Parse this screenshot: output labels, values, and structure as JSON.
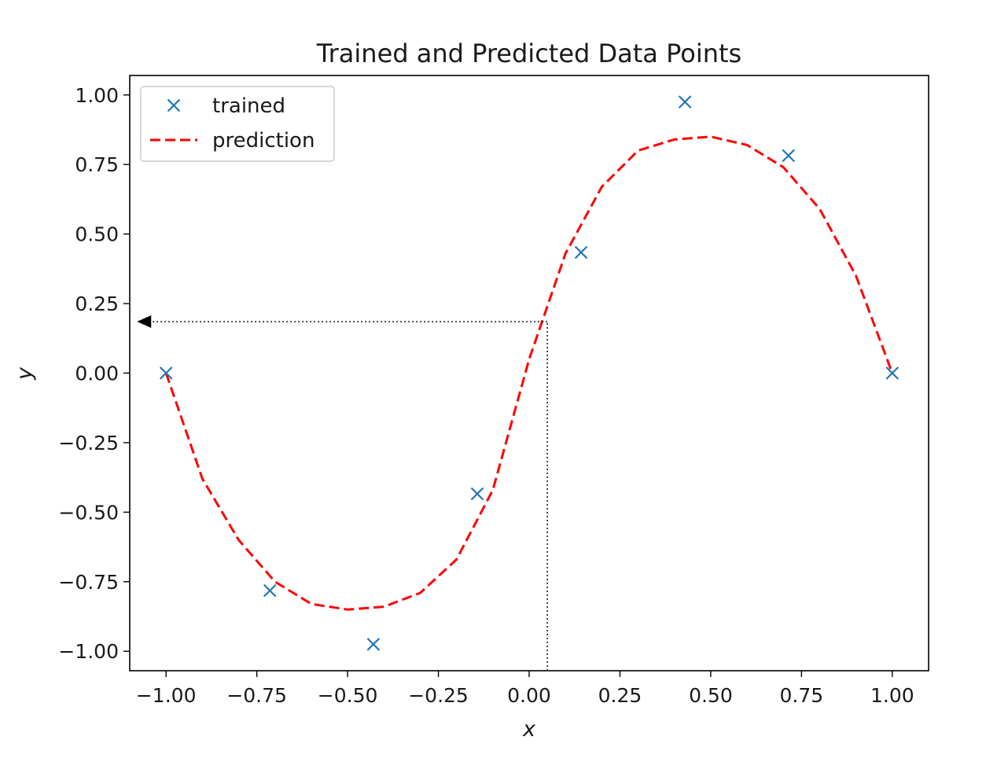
{
  "chart_data": {
    "type": "scatter",
    "title": "Trained and Predicted Data Points",
    "xlabel": "x",
    "ylabel": "y",
    "xlim": [
      -1.1,
      1.1
    ],
    "ylim": [
      -1.07,
      1.07
    ],
    "xticks": [
      -1.0,
      -0.75,
      -0.5,
      -0.25,
      0.0,
      0.25,
      0.5,
      0.75,
      1.0
    ],
    "xtick_labels": [
      "−1.00",
      "−0.75",
      "−0.50",
      "−0.25",
      "0.00",
      "0.25",
      "0.50",
      "0.75",
      "1.00"
    ],
    "yticks": [
      1.0,
      0.75,
      0.5,
      0.25,
      0.0,
      -0.25,
      -0.5,
      -0.75,
      -1.0
    ],
    "ytick_labels": [
      "1.00",
      "0.75",
      "0.50",
      "0.25",
      "0.00",
      "−0.25",
      "−0.50",
      "−0.75",
      "−1.00"
    ],
    "grid": false,
    "legend_position": "top-left",
    "series": [
      {
        "name": "trained",
        "kind": "scatter",
        "marker": "x",
        "color": "#1f77b4",
        "x": [
          -1.0,
          -0.714,
          -0.429,
          -0.143,
          0.143,
          0.429,
          0.714,
          1.0
        ],
        "y": [
          0.0,
          -0.782,
          -0.975,
          -0.434,
          0.434,
          0.975,
          0.782,
          0.0
        ]
      },
      {
        "name": "prediction",
        "kind": "line",
        "style": "dashed",
        "color": "#ff0000",
        "x": [
          -1.0,
          -0.9,
          -0.8,
          -0.7,
          -0.6,
          -0.5,
          -0.4,
          -0.3,
          -0.2,
          -0.1,
          0.0,
          0.1,
          0.2,
          0.3,
          0.4,
          0.5,
          0.6,
          0.7,
          0.8,
          0.9,
          1.0
        ],
        "y": [
          0.0,
          -0.38,
          -0.6,
          -0.75,
          -0.83,
          -0.85,
          -0.84,
          -0.79,
          -0.67,
          -0.42,
          0.05,
          0.43,
          0.67,
          0.8,
          0.84,
          0.85,
          0.82,
          0.74,
          0.59,
          0.35,
          0.0
        ]
      }
    ],
    "annotation": {
      "color": "#000000",
      "x": 0.05,
      "y": 0.185,
      "arrow_to_x": -1.08
    }
  }
}
